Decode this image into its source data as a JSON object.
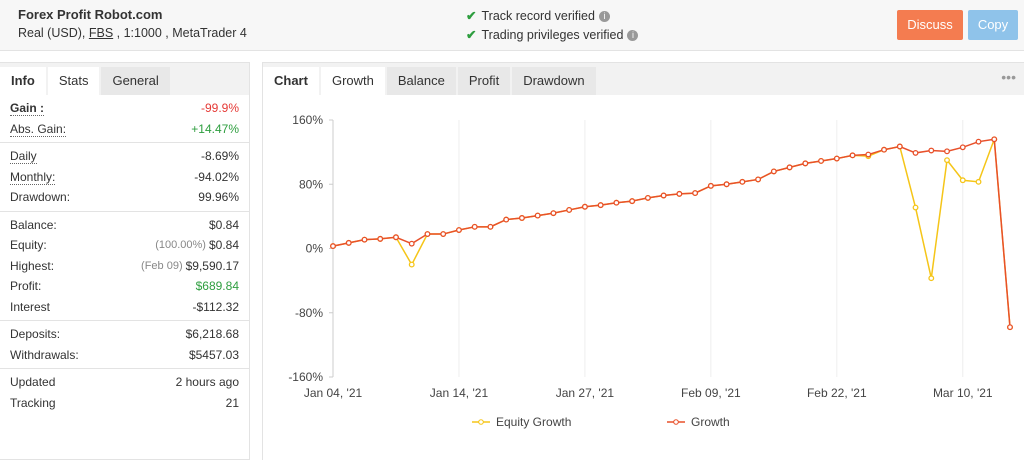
{
  "header": {
    "title": "Forex Profit Robot.com",
    "account_type": "Real (USD)",
    "broker": "FBS",
    "leverage": "1:1000",
    "platform": "MetaTrader 4",
    "verifications": [
      "Track record verified",
      "Trading privileges verified"
    ],
    "buttons": [
      "Discuss",
      "Copy"
    ]
  },
  "left_tabs": [
    "Info",
    "Stats",
    "General"
  ],
  "stats": [
    [
      {
        "label": "Gain :",
        "value": "-99.9%",
        "color": "#e53935",
        "bold": true
      },
      {
        "label": "Abs. Gain:",
        "value": "+14.47%",
        "color": "#2e9e3f"
      }
    ],
    [
      {
        "label": "Daily",
        "value": "-8.69%"
      },
      {
        "label": "Monthly:",
        "value": "-94.02%"
      },
      {
        "label": "Drawdown:",
        "value": "99.96%"
      }
    ],
    [
      {
        "label": "Balance:",
        "value": "$0.84"
      },
      {
        "label": "Equity:",
        "note": "(100.00%)",
        "value": "$0.84"
      },
      {
        "label": "Highest:",
        "note": "(Feb 09)",
        "value": "$9,590.17"
      },
      {
        "label": "Profit:",
        "value": "$689.84",
        "color": "#2e9e3f"
      },
      {
        "label": "Interest",
        "value": "-$112.32"
      }
    ],
    [
      {
        "label": "Deposits:",
        "value": "$6,218.68"
      },
      {
        "label": "Withdrawals:",
        "value": "$5457.03"
      }
    ],
    [
      {
        "label": "Updated",
        "value": "2 hours ago"
      },
      {
        "label": "Tracking",
        "value": "21"
      }
    ]
  ],
  "chart_tabs": [
    "Chart",
    "Growth",
    "Balance",
    "Profit",
    "Drawdown"
  ],
  "chart_data": {
    "type": "line",
    "categories": [
      "Jan 04, '21",
      null,
      null,
      null,
      null,
      null,
      null,
      null,
      "Jan 14, '21",
      null,
      null,
      null,
      null,
      null,
      null,
      null,
      "Jan 27, '21",
      null,
      null,
      null,
      null,
      null,
      null,
      null,
      "Feb 09, '21",
      null,
      null,
      null,
      null,
      null,
      null,
      null,
      "Feb 22, '21",
      null,
      null,
      null,
      null,
      null,
      null,
      null,
      "Mar 10, '21",
      null,
      null,
      null
    ],
    "series": [
      {
        "name": "Equity Growth",
        "color": "#f5c518",
        "values": [
          3,
          7,
          11,
          12,
          14,
          -20,
          18,
          18,
          23,
          27,
          27,
          36,
          38,
          41,
          44,
          48,
          52,
          54,
          57,
          59,
          63,
          66,
          68,
          69,
          78,
          80,
          83,
          86,
          96,
          101,
          106,
          109,
          112,
          116,
          115,
          123,
          127,
          51,
          -37,
          110,
          85,
          83,
          136,
          -98
        ]
      },
      {
        "name": "Growth",
        "color": "#e8502a",
        "values": [
          3,
          7,
          11,
          12,
          14,
          6,
          18,
          18,
          23,
          27,
          27,
          36,
          38,
          41,
          44,
          48,
          52,
          54,
          57,
          59,
          63,
          66,
          68,
          69,
          78,
          80,
          83,
          86,
          96,
          101,
          106,
          109,
          112,
          116,
          117,
          123,
          127,
          119,
          122,
          121,
          126,
          133,
          136,
          -98
        ]
      }
    ],
    "ylim": [
      -160,
      160
    ],
    "yticks": [
      {
        "value": -160,
        "label": "-160%"
      },
      {
        "value": -80,
        "label": "-80%"
      },
      {
        "value": 0,
        "label": "0%"
      },
      {
        "value": 80,
        "label": "80%"
      },
      {
        "value": 160,
        "label": "160%"
      }
    ],
    "grid": true
  }
}
